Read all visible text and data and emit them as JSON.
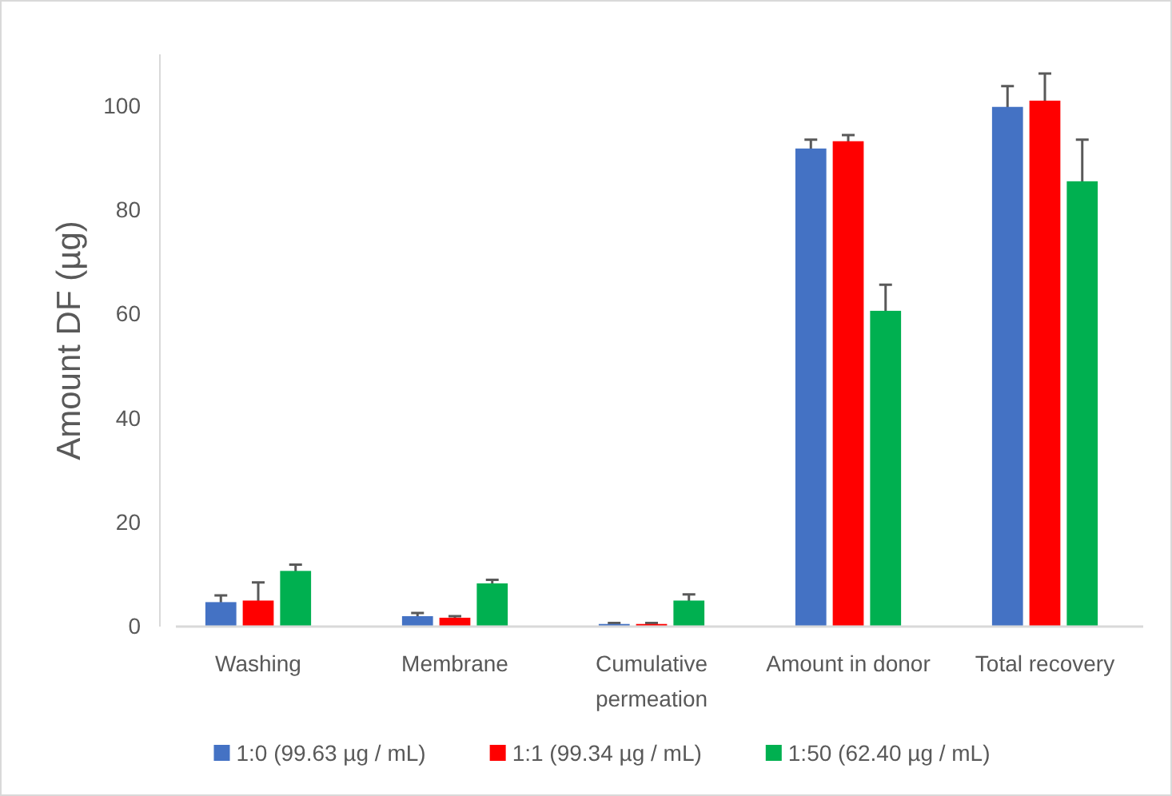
{
  "chart_data": {
    "type": "bar",
    "ylabel": "Amount DF (µg)",
    "categories": [
      "Washing",
      "Membrane",
      "Cumulative permeation",
      "Amount in donor",
      "Total recovery"
    ],
    "series": [
      {
        "name": "1:0 (99.63 µg / mL)",
        "color": "#4472c4",
        "values": [
          4.7,
          2.0,
          0.5,
          91.9,
          99.9
        ],
        "errors": [
          1.3,
          0.6,
          0.2,
          1.7,
          4
        ]
      },
      {
        "name": "1:1 (99.34 µg / mL)",
        "color": "#ff0000",
        "values": [
          5.0,
          1.7,
          0.5,
          93.3,
          101.1
        ],
        "errors": [
          3.5,
          0.3,
          0.2,
          1.2,
          5.2
        ]
      },
      {
        "name": "1:50 (62.40 µg / mL)",
        "color": "#00b050",
        "values": [
          10.7,
          8.3,
          5.0,
          60.7,
          85.6
        ],
        "errors": [
          1.2,
          0.7,
          1.2,
          5,
          8
        ]
      }
    ],
    "ylim": [
      0,
      110
    ],
    "yticks": [
      0,
      20,
      40,
      60,
      80,
      100
    ],
    "grid": false,
    "legend": "bottom"
  }
}
